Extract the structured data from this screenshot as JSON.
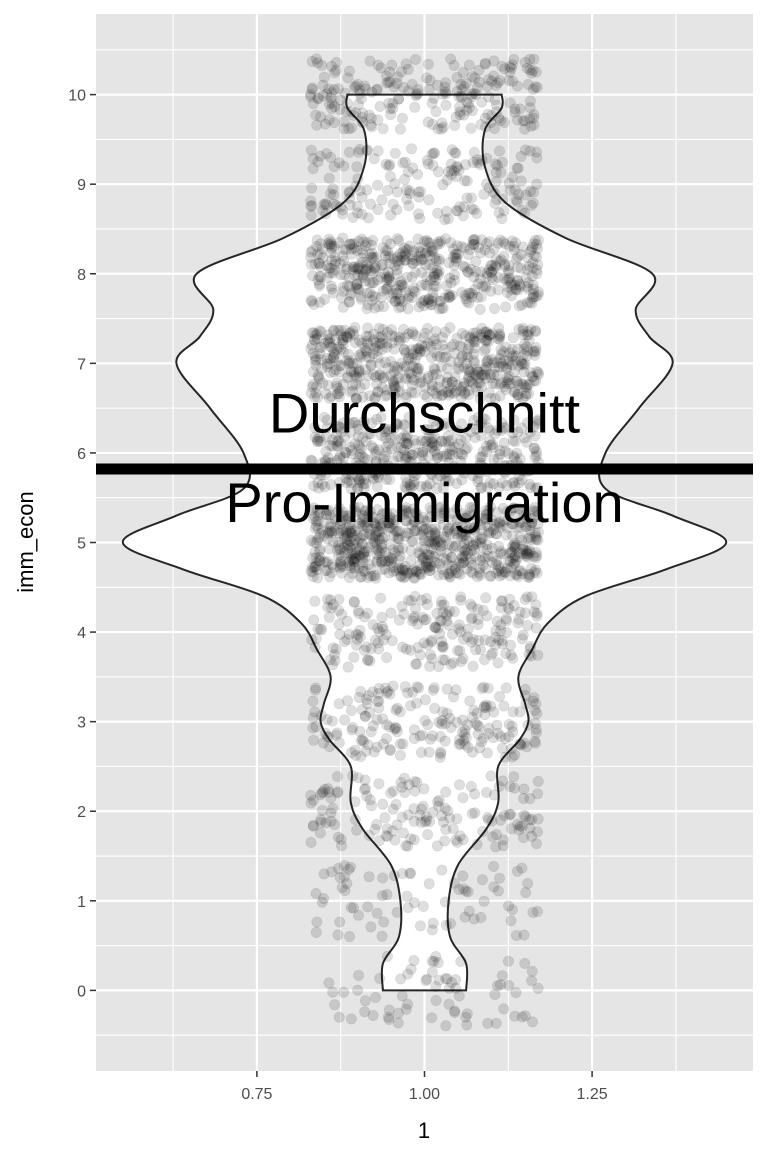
{
  "chart_data": {
    "type": "violin",
    "xlabel": "1",
    "ylabel": "imm_econ",
    "x_ticks": [
      0.75,
      1.0,
      1.25
    ],
    "x_tick_labels": [
      "0.75",
      "1.00",
      "1.25"
    ],
    "y_ticks": [
      0,
      1,
      2,
      3,
      4,
      5,
      6,
      7,
      8,
      9,
      10
    ],
    "y_tick_labels": [
      "0",
      "1",
      "2",
      "3",
      "4",
      "5",
      "6",
      "7",
      "8",
      "9",
      "10"
    ],
    "xlim": [
      0.51,
      1.49
    ],
    "ylim": [
      -0.9,
      10.9
    ],
    "grid": true,
    "panel_background": "#e5e5e5",
    "grid_color": "#ffffff",
    "violin": {
      "fill": "#ffffff",
      "stroke": "#262626",
      "center": 1.0,
      "half_width": [
        {
          "y": 0.0,
          "w": 0.062
        },
        {
          "y": 0.3,
          "w": 0.062
        },
        {
          "y": 0.6,
          "w": 0.038
        },
        {
          "y": 1.0,
          "w": 0.036
        },
        {
          "y": 1.4,
          "w": 0.05
        },
        {
          "y": 1.8,
          "w": 0.092
        },
        {
          "y": 2.1,
          "w": 0.11
        },
        {
          "y": 2.5,
          "w": 0.11
        },
        {
          "y": 2.8,
          "w": 0.142
        },
        {
          "y": 3.0,
          "w": 0.155
        },
        {
          "y": 3.2,
          "w": 0.15
        },
        {
          "y": 3.5,
          "w": 0.14
        },
        {
          "y": 3.8,
          "w": 0.16
        },
        {
          "y": 4.1,
          "w": 0.184
        },
        {
          "y": 4.4,
          "w": 0.24
        },
        {
          "y": 4.7,
          "w": 0.36
        },
        {
          "y": 5.0,
          "w": 0.45
        },
        {
          "y": 5.3,
          "w": 0.37
        },
        {
          "y": 5.6,
          "w": 0.27
        },
        {
          "y": 6.0,
          "w": 0.27
        },
        {
          "y": 6.5,
          "w": 0.32
        },
        {
          "y": 7.0,
          "w": 0.37
        },
        {
          "y": 7.3,
          "w": 0.335
        },
        {
          "y": 7.6,
          "w": 0.315
        },
        {
          "y": 8.0,
          "w": 0.34
        },
        {
          "y": 8.4,
          "w": 0.21
        },
        {
          "y": 8.8,
          "w": 0.12
        },
        {
          "y": 9.2,
          "w": 0.09
        },
        {
          "y": 9.6,
          "w": 0.09
        },
        {
          "y": 9.85,
          "w": 0.115
        },
        {
          "y": 10.0,
          "w": 0.115
        }
      ]
    },
    "points": {
      "color": "#000000",
      "opacity": 0.13,
      "jitter_x": [
        0.83,
        1.17
      ],
      "jitter_y": 0.4,
      "counts_by_value": [
        {
          "value": 0,
          "n": 70
        },
        {
          "value": 1,
          "n": 75
        },
        {
          "value": 2,
          "n": 150
        },
        {
          "value": 3,
          "n": 190
        },
        {
          "value": 4,
          "n": 200
        },
        {
          "value": 5,
          "n": 640
        },
        {
          "value": 6,
          "n": 380
        },
        {
          "value": 7,
          "n": 500
        },
        {
          "value": 8,
          "n": 450
        },
        {
          "value": 9,
          "n": 170
        },
        {
          "value": 10,
          "n": 220
        }
      ]
    },
    "mean_line": {
      "y": 5.82,
      "color": "#000000"
    },
    "annotations": [
      {
        "text": "Durchschnitt",
        "x": 1.0,
        "y": 6.45
      },
      {
        "text": "Pro-Immigration",
        "x": 1.0,
        "y": 5.45
      }
    ]
  }
}
